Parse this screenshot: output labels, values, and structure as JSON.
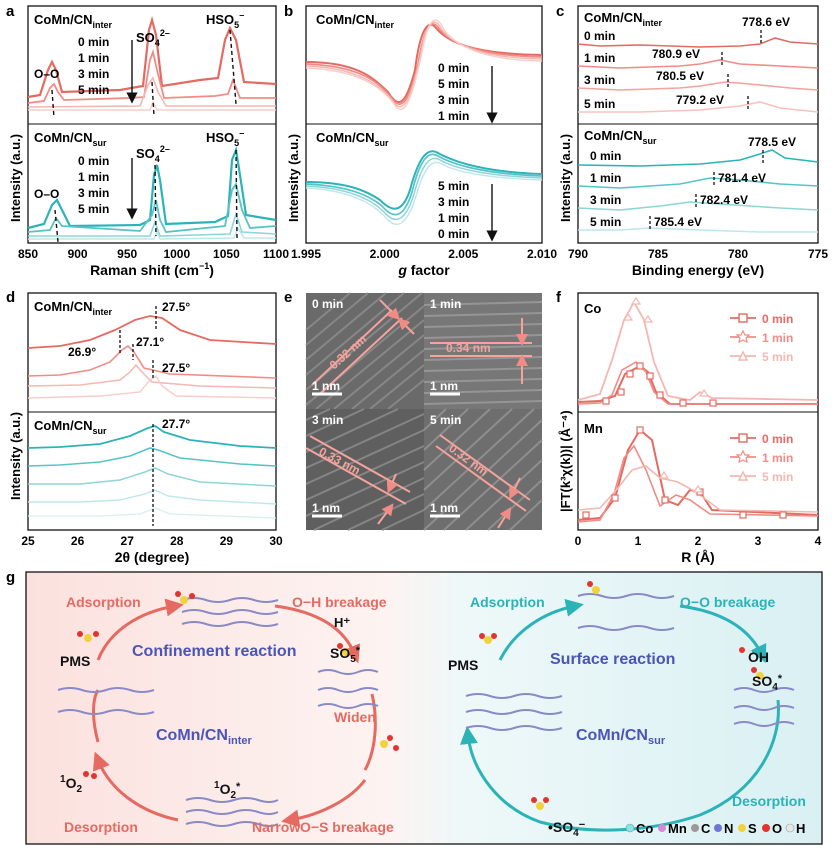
{
  "panel_letters": [
    "a",
    "b",
    "c",
    "d",
    "e",
    "f",
    "g"
  ],
  "colors": {
    "red": "#e46a62",
    "teal": "#2bb3b8",
    "light_red": "#f4b7b1",
    "light_teal": "#a7dfe2",
    "blue_text": "#4a55b5"
  },
  "panel_a": {
    "top_title": "CoMn/CN",
    "top_sub": "inter",
    "bottom_title": "CoMn/CN",
    "bottom_sub": "sur",
    "times": [
      "0 min",
      "1 min",
      "3 min",
      "5 min"
    ],
    "peak_oo": "O–O",
    "peak_so4": "SO",
    "peak_so4_sup": "2–",
    "peak_so4_sub": "4",
    "peak_hso5": "HSO",
    "peak_hso5_sub": "5",
    "peak_hso5_sup": "–",
    "ylabel": "Intensity (a.u.)",
    "xlabel": "Raman shift (cm",
    "xlabel_sup": "−1",
    "xlabel_end": ")",
    "xticks": [
      "850",
      "900",
      "950",
      "1000",
      "1050",
      "1100"
    ]
  },
  "panel_b": {
    "top_title": "CoMn/CN",
    "top_sub": "inter",
    "bottom_title": "CoMn/CN",
    "bottom_sub": "sur",
    "top_times": [
      "0 min",
      "5 min",
      "3 min",
      "1 min"
    ],
    "bottom_times": [
      "5 min",
      "3 min",
      "1 min",
      "0 min"
    ],
    "ylabel": "Intensity (a.u.)",
    "xlabel_g": "g",
    "xlabel_rest": " factor",
    "xticks": [
      "1.995",
      "2.000",
      "2.005",
      "2.010"
    ]
  },
  "panel_c": {
    "top_title": "CoMn/CN",
    "top_sub": "inter",
    "bottom_title": "CoMn/CN",
    "bottom_sub": "sur",
    "top_rows": [
      {
        "time": "0 min",
        "ev": "778.6 eV"
      },
      {
        "time": "1 min",
        "ev": "780.9 eV"
      },
      {
        "time": "3 min",
        "ev": "780.5 eV"
      },
      {
        "time": "5 min",
        "ev": "779.2 eV"
      }
    ],
    "bottom_rows": [
      {
        "time": "0 min",
        "ev": "778.5 eV"
      },
      {
        "time": "1 min",
        "ev": "781.4 eV"
      },
      {
        "time": "3 min",
        "ev": "782.4 eV"
      },
      {
        "time": "5 min",
        "ev": "785.4 eV"
      }
    ],
    "ylabel": "Intensity (a.u.)",
    "xlabel": "Binding energy (eV)",
    "xticks": [
      "790",
      "785",
      "780",
      "775"
    ]
  },
  "panel_d": {
    "top_title": "CoMn/CN",
    "top_sub": "inter",
    "bottom_title": "CoMn/CN",
    "bottom_sub": "sur",
    "ann_top": "27.5°",
    "ann_a": "26.9°",
    "ann_b": "27.1°",
    "ann_c": "27.5°",
    "ann_bottom": "27.7°",
    "ylabel": "Intensity (a.u.)",
    "xlabel": "2θ (degree)",
    "xticks": [
      "25",
      "26",
      "27",
      "28",
      "29",
      "30"
    ]
  },
  "panel_e": {
    "tiles": [
      {
        "time": "0 min",
        "spacing": "0.32 nm",
        "scale": "1 nm"
      },
      {
        "time": "1 min",
        "spacing": "0.34 nm",
        "scale": "1 nm"
      },
      {
        "time": "3 min",
        "spacing": "0.33 nm",
        "scale": "1 nm"
      },
      {
        "time": "5 min",
        "spacing": "0.32 nm",
        "scale": "1 nm"
      }
    ]
  },
  "panel_f": {
    "top_element": "Co",
    "bottom_element": "Mn",
    "times": [
      "0 min",
      "1 min",
      "5 min"
    ],
    "ylabel": "|FT(k³χ(k))| (Å⁻⁴)",
    "xlabel": "R (Å)",
    "xticks": [
      "0",
      "1",
      "2",
      "3",
      "4"
    ]
  },
  "panel_g": {
    "left": {
      "adsorption": "Adsorption",
      "oh_breakage": "O−H breakage",
      "hplus": "H⁺",
      "pms": "PMS",
      "center": "Confinement reaction",
      "so5": "SO",
      "so5_sub": "5",
      "so5_sup": "*",
      "widen": "Widen",
      "catalyst": "CoMn/CN",
      "catalyst_sub": "inter",
      "o2": "O",
      "o2_pre": "1",
      "o2_sub": "2",
      "o2s_pre": "1",
      "o2s": "O",
      "o2s_sub": "2",
      "o2s_sup": "*",
      "narrow": "Narrow",
      "os_breakage": "O−S breakage",
      "desorption": "Desorption"
    },
    "right": {
      "adsorption": "Adsorption",
      "oo_breakage": "O−O breakage",
      "oh": "OH",
      "pms": "PMS",
      "center": "Surface reaction",
      "so4": "SO",
      "so4_sub": "4",
      "so4_sup": "*",
      "catalyst": "CoMn/CN",
      "catalyst_sub": "sur",
      "desorption": "Desorption",
      "radical": "•SO",
      "radical_sub": "4",
      "radical_sup": "−"
    },
    "legend": [
      "Co",
      "Mn",
      "C",
      "N",
      "S",
      "O",
      "H"
    ]
  }
}
